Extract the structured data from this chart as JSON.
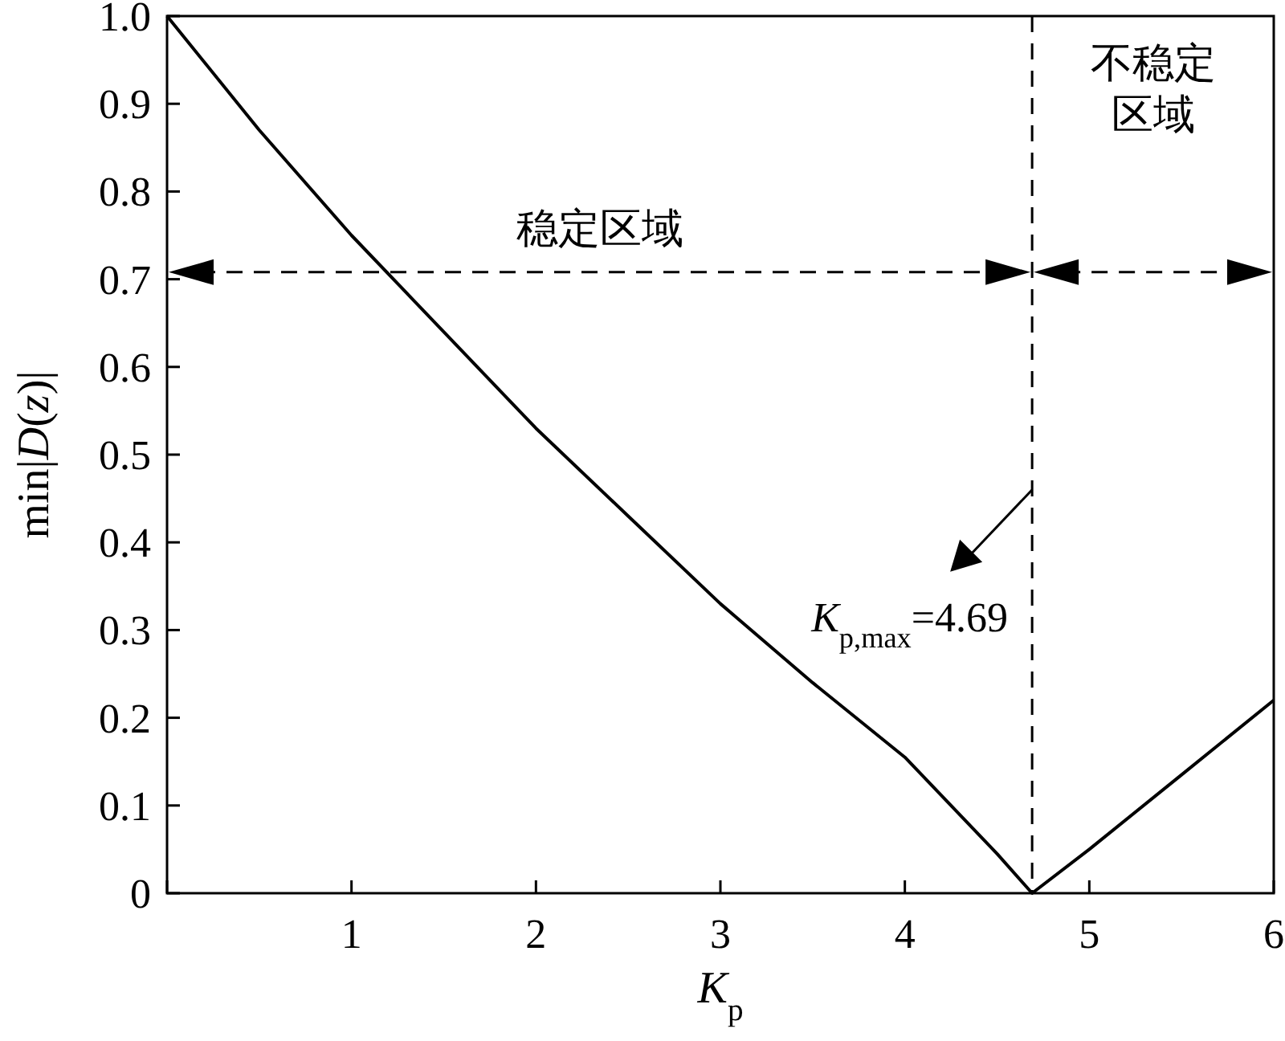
{
  "chart_data": {
    "type": "line",
    "xlabel": "*K*$_{p}$",
    "ylabel": "min|*D*(*z*)|",
    "x": [
      0,
      0.5,
      1,
      1.5,
      2,
      2.5,
      3,
      3.5,
      4,
      4.5,
      4.69,
      5,
      5.5,
      6
    ],
    "series": [
      {
        "color": "#000000",
        "values": [
          1.0,
          0.87,
          0.75,
          0.64,
          0.53,
          0.43,
          0.33,
          0.24,
          0.155,
          0.045,
          0,
          0.05,
          0.135,
          0.22
        ]
      }
    ],
    "xlim": [
      0,
      6
    ],
    "ylim": [
      0,
      1
    ],
    "xticks": [
      {
        "value": 0,
        "label": null
      },
      1,
      2,
      3,
      4,
      5,
      6
    ],
    "yticks": [
      0,
      0.1,
      0.2,
      0.3,
      0.4,
      0.5,
      0.6,
      0.7,
      0.8,
      0.9,
      {
        "value": 1,
        "label": "1.0"
      }
    ],
    "ref_lines": [
      {
        "axis": "x",
        "value": 4.69,
        "line_style": "dashed",
        "color": "#000000"
      }
    ],
    "annotations": [
      "稳定区域",
      "不稳定区域",
      {
        "text": "*K*$_{p,max}$=4.69",
        "x": 4.69,
        "y": 0.46
      }
    ],
    "grid": false,
    "marker": "none",
    "line_style": "solid"
  }
}
